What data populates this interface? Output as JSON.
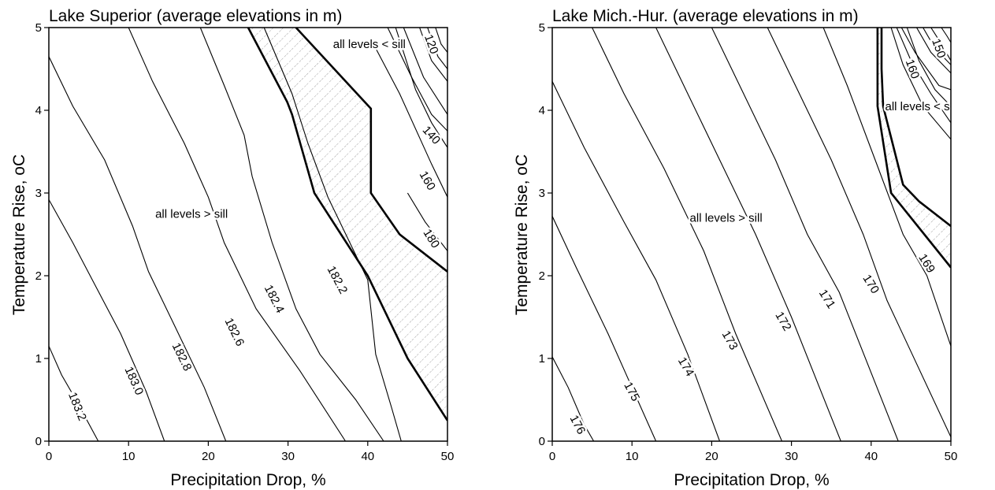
{
  "chart_data": [
    {
      "type": "contour",
      "title": "Lake Superior (average elevations in m)",
      "xlabel": "Precipitation Drop, %",
      "ylabel": "Temperature Rise, oC",
      "xlim": [
        0,
        50
      ],
      "ylim": [
        0,
        5
      ],
      "xticks": [
        "0",
        "10",
        "20",
        "30",
        "40",
        "50"
      ],
      "yticks": [
        "0",
        "1",
        "2",
        "3",
        "4",
        "5"
      ],
      "grid": false,
      "region_labels": [
        {
          "text": "all levels > sill",
          "x": 17.9,
          "y": 2.75
        },
        {
          "text": "all levels < sill",
          "x": 40.2,
          "y": 4.8
        }
      ],
      "sill_boundaries": [
        [
          [
            25,
            5
          ],
          [
            29.9,
            4.1
          ],
          [
            30.5,
            3.95
          ],
          [
            33.3,
            3
          ],
          [
            40,
            2
          ],
          [
            45,
            1
          ],
          [
            50,
            0.25
          ]
        ],
        [
          [
            31,
            5
          ],
          [
            40.4,
            4.02
          ],
          [
            40.4,
            3
          ],
          [
            44,
            2.5
          ],
          [
            50,
            2.05
          ]
        ]
      ],
      "contours": [
        {
          "level": "183.2",
          "label_at": [
            3.6,
            0.42
          ],
          "label_angle": 68,
          "points": [
            [
              0,
              1.15
            ],
            [
              1.6,
              0.8
            ],
            [
              3.4,
              0.5
            ],
            [
              6.2,
              0
            ]
          ]
        },
        {
          "level": "183.0",
          "label_at": [
            10.7,
            0.73
          ],
          "label_angle": 66,
          "points": [
            [
              0,
              2.92
            ],
            [
              3,
              2.4
            ],
            [
              6,
              1.85
            ],
            [
              9,
              1.3
            ],
            [
              12.2,
              0.6
            ],
            [
              14.5,
              0
            ]
          ]
        },
        {
          "level": "182.8",
          "label_at": [
            16.7,
            1.02
          ],
          "label_angle": 64,
          "points": [
            [
              0,
              4.65
            ],
            [
              3,
              4.05
            ],
            [
              7,
              3.4
            ],
            [
              10.5,
              2.6
            ],
            [
              12.5,
              2.05
            ],
            [
              15.5,
              1.45
            ],
            [
              19.5,
              0.65
            ],
            [
              22.2,
              0
            ]
          ]
        },
        {
          "level": "182.6",
          "label_at": [
            23.3,
            1.32
          ],
          "label_angle": 64,
          "points": [
            [
              10,
              5
            ],
            [
              13,
              4.35
            ],
            [
              17,
              3.6
            ],
            [
              20,
              2.95
            ],
            [
              22,
              2.4
            ],
            [
              26,
              1.6
            ],
            [
              31.5,
              0.85
            ],
            [
              37.2,
              0
            ]
          ]
        },
        {
          "level": "182.4",
          "label_at": [
            28.3,
            1.72
          ],
          "label_angle": 63,
          "points": [
            [
              19,
              5
            ],
            [
              22,
              4.3
            ],
            [
              24.5,
              3.7
            ],
            [
              25.5,
              3.2
            ],
            [
              28,
              2.4
            ],
            [
              31,
              1.6
            ],
            [
              34,
              1.05
            ],
            [
              38.5,
              0.5
            ],
            [
              42,
              0
            ]
          ]
        },
        {
          "level": "182.2",
          "label_at": [
            36.2,
            1.95
          ],
          "label_angle": 62,
          "points": [
            [
              27,
              5
            ],
            [
              30.5,
              4.2
            ],
            [
              32.5,
              3.6
            ],
            [
              35,
              2.95
            ],
            [
              40,
              1.95
            ],
            [
              41,
              1.05
            ],
            [
              43,
              0.4
            ],
            [
              44.2,
              0
            ]
          ]
        },
        {
          "level": "180",
          "label_at": [
            48,
            2.45
          ],
          "label_angle": 58,
          "points": [
            [
              45,
              3
            ],
            [
              47.2,
              2.65
            ],
            [
              50,
              2.3
            ]
          ]
        },
        {
          "level": "160",
          "label_at": [
            47.5,
            3.15
          ],
          "label_angle": 60,
          "points": [
            [
              41,
              4.75
            ],
            [
              44,
              4.2
            ],
            [
              48,
              3.35
            ],
            [
              50,
              2.95
            ]
          ]
        },
        {
          "level": "140",
          "label_at": [
            48,
            3.7
          ],
          "label_angle": 48,
          "points": [
            [
              43.5,
              5
            ],
            [
              46,
              4.25
            ],
            [
              48,
              3.85
            ],
            [
              50,
              3.55
            ]
          ]
        },
        {
          "level": "120",
          "label_at": [
            48,
            4.8
          ],
          "label_angle": 70,
          "points": [
            [
              46.5,
              5
            ],
            [
              48,
              4.6
            ],
            [
              50,
              4.35
            ]
          ]
        },
        {
          "level": "",
          "points": [
            [
              44.5,
              5
            ],
            [
              47,
              4.4
            ],
            [
              50,
              3.95
            ]
          ]
        },
        {
          "level": "",
          "points": [
            [
              42.5,
              5
            ],
            [
              45.5,
              4.4
            ],
            [
              48,
              3.95
            ],
            [
              50,
              3.75
            ]
          ]
        },
        {
          "level": "",
          "points": [
            [
              47.5,
              5
            ],
            [
              48.8,
              4.65
            ],
            [
              50,
              4.5
            ]
          ]
        },
        {
          "level": "",
          "points": [
            [
              48.5,
              5
            ],
            [
              49.2,
              4.8
            ],
            [
              50,
              4.7
            ]
          ]
        }
      ]
    },
    {
      "type": "contour",
      "title": "Lake Mich.-Hur. (average elevations in m)",
      "xlabel": "Precipitation Drop, %",
      "ylabel": "Temperature Rise, oC",
      "xlim": [
        0,
        50
      ],
      "ylim": [
        0,
        5
      ],
      "xticks": [
        "0",
        "10",
        "20",
        "30",
        "40",
        "50"
      ],
      "yticks": [
        "0",
        "1",
        "2",
        "3",
        "4",
        "5"
      ],
      "grid": false,
      "region_labels": [
        {
          "text": "all levels > sill",
          "x": 21.8,
          "y": 2.7
        },
        {
          "text": "all levels < sill",
          "x": 46.3,
          "y": 4.05
        }
      ],
      "sill_boundaries": [
        [
          [
            40.8,
            5
          ],
          [
            40.8,
            4.5
          ],
          [
            40.8,
            4.05
          ],
          [
            42.5,
            3
          ],
          [
            50,
            2.1
          ]
        ],
        [
          [
            41.3,
            5
          ],
          [
            41.3,
            4.5
          ],
          [
            41.5,
            4.05
          ],
          [
            44,
            3.1
          ],
          [
            46,
            2.9
          ],
          [
            50,
            2.6
          ]
        ]
      ],
      "contours": [
        {
          "level": "176",
          "label_at": [
            3.2,
            0.2
          ],
          "label_angle": 62,
          "points": [
            [
              0,
              1.02
            ],
            [
              2,
              0.65
            ],
            [
              4,
              0.2
            ],
            [
              5.2,
              0
            ]
          ]
        },
        {
          "level": "175",
          "label_at": [
            10,
            0.6
          ],
          "label_angle": 62,
          "points": [
            [
              0,
              2.72
            ],
            [
              3,
              2.1
            ],
            [
              7,
              1.3
            ],
            [
              10,
              0.65
            ],
            [
              13,
              0
            ]
          ]
        },
        {
          "level": "174",
          "label_at": [
            16.8,
            0.9
          ],
          "label_angle": 60,
          "points": [
            [
              0,
              4.35
            ],
            [
              4,
              3.55
            ],
            [
              9,
              2.65
            ],
            [
              13,
              1.95
            ],
            [
              17,
              1.05
            ],
            [
              21,
              0
            ]
          ]
        },
        {
          "level": "173",
          "label_at": [
            22.3,
            1.22
          ],
          "label_angle": 60,
          "points": [
            [
              5,
              5
            ],
            [
              9,
              4.2
            ],
            [
              14,
              3.3
            ],
            [
              19,
              2.3
            ],
            [
              23,
              1.3
            ],
            [
              28.8,
              0
            ]
          ]
        },
        {
          "level": "172",
          "label_at": [
            29,
            1.45
          ],
          "label_angle": 60,
          "points": [
            [
              13,
              5
            ],
            [
              17,
              4.2
            ],
            [
              21,
              3.4
            ],
            [
              25.5,
              2.5
            ],
            [
              30,
              1.5
            ],
            [
              36.2,
              0
            ]
          ]
        },
        {
          "level": "171",
          "label_at": [
            34.5,
            1.72
          ],
          "label_angle": 58,
          "points": [
            [
              20,
              5
            ],
            [
              24,
              4.2
            ],
            [
              28,
              3.4
            ],
            [
              32,
              2.5
            ],
            [
              36,
              1.8
            ],
            [
              43.4,
              0
            ]
          ]
        },
        {
          "level": "170",
          "label_at": [
            40,
            1.9
          ],
          "label_angle": 58,
          "points": [
            [
              27,
              5
            ],
            [
              31,
              4.2
            ],
            [
              35,
              3.4
            ],
            [
              39,
              2.5
            ],
            [
              42,
              1.7
            ],
            [
              50,
              0.05
            ]
          ]
        },
        {
          "level": "169",
          "label_at": [
            47,
            2.15
          ],
          "label_angle": 58,
          "points": [
            [
              34,
              5
            ],
            [
              37,
              4.3
            ],
            [
              40.5,
              3.4
            ],
            [
              44,
              2.5
            ],
            [
              47,
              2.0
            ],
            [
              50,
              1.15
            ]
          ]
        },
        {
          "level": "160",
          "label_at": [
            45.2,
            4.5
          ],
          "label_angle": 70,
          "points": [
            [
              44.5,
              5
            ],
            [
              46,
              4.6
            ],
            [
              48,
              4.25
            ],
            [
              50,
              4.05
            ]
          ]
        },
        {
          "level": "150",
          "label_at": [
            48.5,
            4.75
          ],
          "label_angle": 70,
          "points": [
            [
              47.5,
              5
            ],
            [
              48.5,
              4.85
            ],
            [
              50,
              4.6
            ]
          ]
        },
        {
          "level": "",
          "points": [
            [
              42.5,
              5
            ],
            [
              44,
              4.55
            ],
            [
              46.5,
              4.05
            ],
            [
              50,
              3.65
            ]
          ]
        },
        {
          "level": "",
          "points": [
            [
              43.2,
              5
            ],
            [
              45,
              4.6
            ],
            [
              47.5,
              4.2
            ],
            [
              50,
              3.85
            ]
          ]
        },
        {
          "level": "",
          "points": [
            [
              43.8,
              5
            ],
            [
              45.5,
              4.7
            ],
            [
              48.5,
              4.3
            ],
            [
              50,
              4.25
            ]
          ]
        },
        {
          "level": "",
          "points": [
            [
              45.7,
              5
            ],
            [
              47.5,
              4.7
            ],
            [
              50,
              4.45
            ]
          ]
        },
        {
          "level": "",
          "points": [
            [
              46.5,
              5
            ],
            [
              48,
              4.75
            ],
            [
              50,
              4.55
            ]
          ]
        },
        {
          "level": "",
          "points": [
            [
              48.8,
              5
            ],
            [
              49.5,
              4.9
            ],
            [
              50,
              4.82
            ]
          ]
        }
      ]
    }
  ]
}
